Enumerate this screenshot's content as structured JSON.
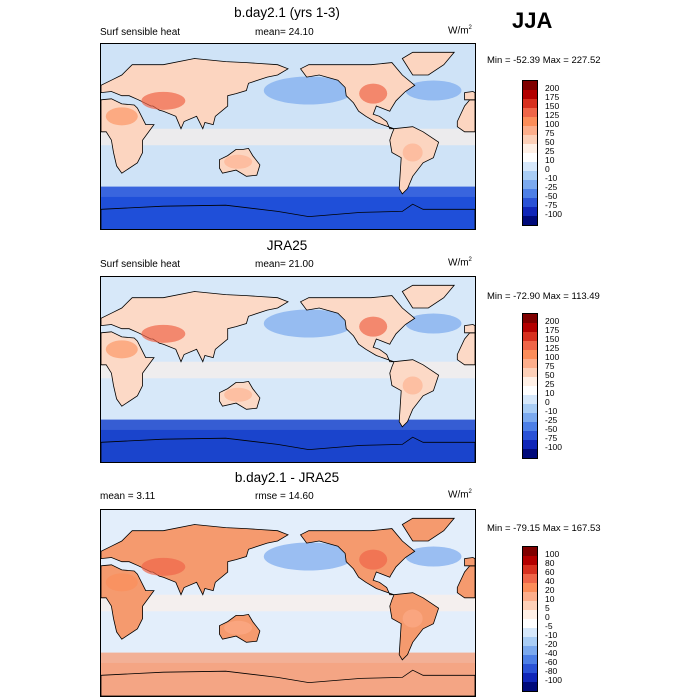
{
  "season": "JJA",
  "panels": [
    {
      "id": "model",
      "title": "b.day2.1 (yrs 1-3)",
      "left_label": "Surf sensible heat",
      "center_label": "mean=  24.10",
      "units": "W/m",
      "units_sup": "2",
      "minmax": "Min = -52.39 Max = 227.52",
      "levels": [
        "200",
        "175",
        "150",
        "125",
        "100",
        "75",
        "50",
        "25",
        "10",
        "0",
        "-10",
        "-25",
        "-50",
        "-75",
        "-100"
      ],
      "colors": [
        "#7f0000",
        "#b30000",
        "#d7301f",
        "#ef6548",
        "#fc8d59",
        "#fdae8b",
        "#fdd0b8",
        "#fff0e6",
        "#ffffff",
        "#d6e8fb",
        "#a9cdf5",
        "#7ba9ee",
        "#4d7fe6",
        "#2a52d6",
        "#1026b8",
        "#000a7a"
      ],
      "map_colors": {
        "ocean": "#cfe3f7",
        "land": "#fcd5c0",
        "south": "#1f4fd9"
      }
    },
    {
      "id": "obs",
      "title": "JRA25",
      "left_label": "Surf sensible heat",
      "center_label": "mean=  21.00",
      "units": "W/m",
      "units_sup": "2",
      "minmax": "Min = -72.90 Max = 113.49",
      "levels": [
        "200",
        "175",
        "150",
        "125",
        "100",
        "75",
        "50",
        "25",
        "10",
        "0",
        "-10",
        "-25",
        "-50",
        "-75",
        "-100"
      ],
      "colors": [
        "#7f0000",
        "#b30000",
        "#d7301f",
        "#ef6548",
        "#fc8d59",
        "#fdae8b",
        "#fdd0b8",
        "#fff0e6",
        "#ffffff",
        "#d6e8fb",
        "#a9cdf5",
        "#7ba9ee",
        "#4d7fe6",
        "#2a52d6",
        "#1026b8",
        "#000a7a"
      ],
      "map_colors": {
        "ocean": "#d7e8f9",
        "land": "#fcd9c6",
        "south": "#1a44cc"
      }
    },
    {
      "id": "diff",
      "title": "b.day2.1 - JRA25",
      "left_label": "mean =   3.11",
      "center_label": "rmse =  14.60",
      "units": "W/m",
      "units_sup": "2",
      "minmax": "Min = -79.15 Max = 167.53",
      "levels": [
        "100",
        "80",
        "60",
        "40",
        "20",
        "10",
        "5",
        "0",
        "-5",
        "-10",
        "-20",
        "-40",
        "-60",
        "-80",
        "-100"
      ],
      "colors": [
        "#7f0000",
        "#b30000",
        "#d7301f",
        "#ef6548",
        "#fc8d59",
        "#fdae8b",
        "#fdd0b8",
        "#fff0e6",
        "#ffffff",
        "#d6e8fb",
        "#a9cdf5",
        "#7ba9ee",
        "#4d7fe6",
        "#2a52d6",
        "#1026b8",
        "#000a7a"
      ],
      "map_colors": {
        "ocean": "#e3eefb",
        "land": "#f59a6e",
        "south": "#f4a584"
      }
    }
  ]
}
